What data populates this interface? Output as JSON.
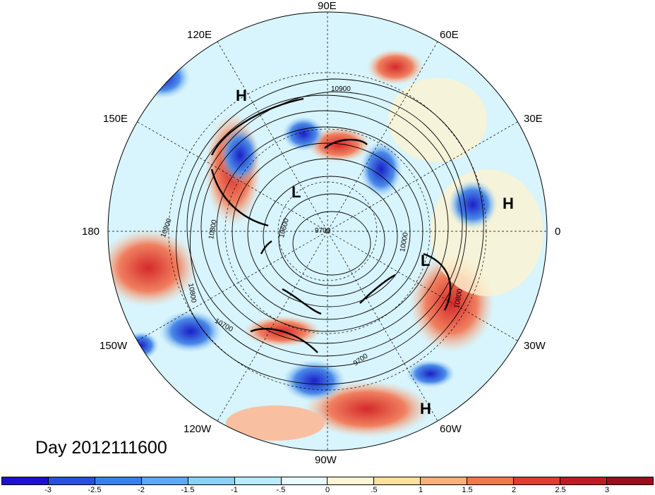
{
  "title": "Day 2012111600",
  "longitude_labels": {
    "lon_90e": "90E",
    "lon_120e": "120E",
    "lon_60e": "60E",
    "lon_150e": "150E",
    "lon_30e": "30E",
    "lon_180": "180",
    "lon_0": "0",
    "lon_150w": "150W",
    "lon_30w": "30W",
    "lon_120w": "120W",
    "lon_60w": "60W",
    "lon_90w": "90W"
  },
  "pressure_centers": {
    "high_pacific_asia": "H",
    "high_atlantic_east": "H",
    "high_atlantic_west": "H",
    "low_siberia": "L",
    "low_atlantic": "L"
  },
  "contour_labels": {
    "c_10900_top": "10900",
    "c_10900_left": "10900",
    "c_10800_left": "10800",
    "c_10800_mid": "10800",
    "c_10700_left": "10700",
    "c_10600": "10600",
    "c_9700_center": "9700",
    "c_9700_south": "9700",
    "c_10800_right": "10800",
    "c_10000": "10000"
  },
  "colorbar": {
    "ticks": [
      "-3",
      "-2.5",
      "-2",
      "-1.5",
      "-1",
      "-.5",
      "0",
      ".5",
      "1",
      "1.5",
      "2",
      "2.5",
      "3"
    ],
    "colors": [
      "#1e10d2",
      "#2850e0",
      "#3a7ff0",
      "#60a8f2",
      "#8cd0f8",
      "#b8ecfd",
      "#e8fbff",
      "#fdf6d2",
      "#fde0a0",
      "#f8b07c",
      "#f0784e",
      "#e03c32",
      "#c01a24",
      "#9c0c1c"
    ]
  }
}
